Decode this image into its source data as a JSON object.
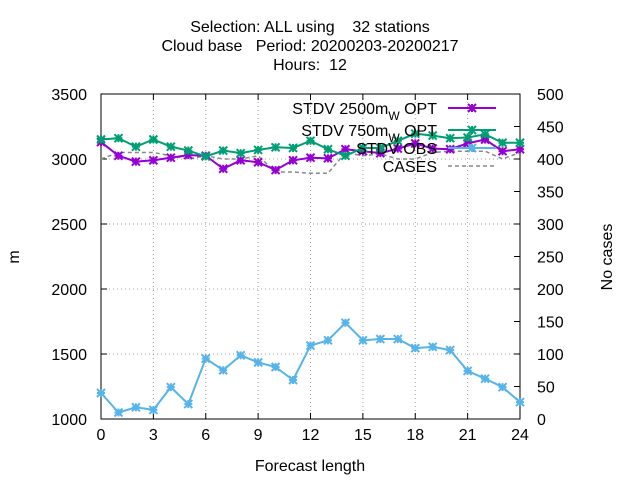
{
  "title_lines": [
    "Selection: ALL using    32 stations",
    "Cloud base   Period: 20200203-20200217",
    "Hours:  12"
  ],
  "chart_data": {
    "type": "line",
    "xlabel": "Forecast length",
    "ylabel": "m",
    "y2label": "No cases",
    "xlim": [
      0,
      24
    ],
    "ylim": [
      1000,
      3500
    ],
    "y2lim": [
      0,
      500
    ],
    "grid": true,
    "legend_position": "top-right",
    "x_ticks": [
      0,
      3,
      6,
      9,
      12,
      15,
      18,
      21,
      24
    ],
    "y_ticks": [
      1000,
      1500,
      2000,
      2500,
      3000,
      3500
    ],
    "y2_ticks": [
      0,
      50,
      100,
      150,
      200,
      250,
      300,
      350,
      400,
      450,
      500
    ],
    "x": [
      0,
      1,
      2,
      3,
      4,
      5,
      6,
      7,
      8,
      9,
      10,
      11,
      12,
      13,
      14,
      15,
      16,
      17,
      18,
      19,
      20,
      21,
      22,
      23,
      24
    ],
    "series": [
      {
        "name": "STDV 2500m",
        "name_sub": "W",
        "name_suffix": " OPT",
        "color": "#9400d3",
        "marker": "x-star",
        "axis": "y",
        "dashed": false,
        "values": [
          3130,
          3025,
          2980,
          2990,
          3010,
          3030,
          3025,
          2925,
          2990,
          2975,
          2915,
          2990,
          3010,
          3005,
          3075,
          3060,
          3045,
          3080,
          3120,
          3080,
          3075,
          3120,
          3150,
          3060,
          3075
        ]
      },
      {
        "name": "STDV 750m",
        "name_sub": "W",
        "name_suffix": " OPT",
        "color": "#009e73",
        "marker": "x-star",
        "axis": "y",
        "dashed": false,
        "values": [
          3150,
          3160,
          3095,
          3150,
          3095,
          3065,
          3020,
          3065,
          3045,
          3070,
          3090,
          3085,
          3140,
          3075,
          3025,
          3085,
          3085,
          3140,
          3195,
          3180,
          3160,
          3165,
          3190,
          3125,
          3125
        ]
      },
      {
        "name": "STDV OBS",
        "color": "#56b4e9",
        "marker": "x-star",
        "axis": "y2",
        "dashed": false,
        "values": [
          40,
          10,
          18,
          14,
          49,
          23,
          93,
          75,
          98,
          87,
          80,
          60,
          113,
          121,
          148,
          121,
          123,
          123,
          109,
          111,
          106,
          74,
          62,
          49,
          26
        ]
      },
      {
        "name": "CASES",
        "color": "#888888",
        "marker": "none",
        "axis": "y2",
        "dashed": true,
        "values": [
          400,
          410,
          410,
          410,
          405,
          400,
          405,
          400,
          400,
          405,
          380,
          380,
          378,
          378,
          410,
          405,
          408,
          400,
          400,
          410,
          412,
          412,
          412,
          400,
          410
        ]
      }
    ]
  }
}
